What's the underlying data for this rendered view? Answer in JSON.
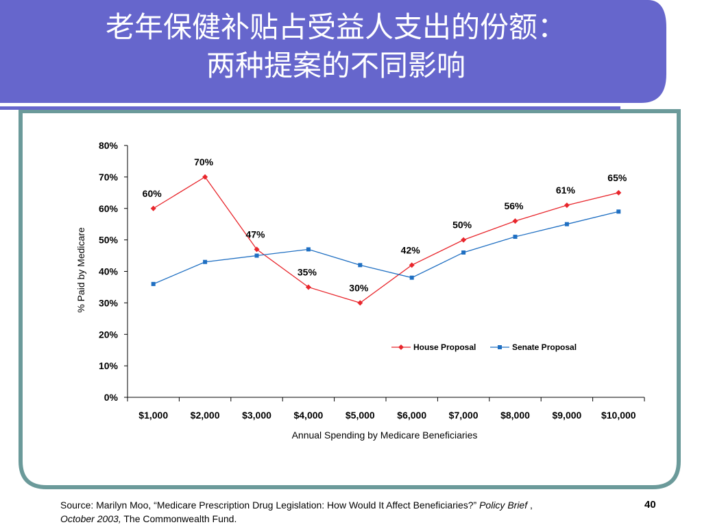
{
  "slide": {
    "title_line1": "老年保健补贴占受益人支出的份额：",
    "title_line2": "两种提案的不同影响",
    "page_number": "40",
    "source": {
      "prefix": "Source: Marilyn Moo, “Medicare Prescription Drug Legislation: How Would It Affect Beneficiaries?” ",
      "italic1": "Policy Brief",
      "sep": " ,",
      "italic2": "October 2003,",
      "suffix": " The Commonwealth Fund."
    },
    "colors": {
      "header": "#6666cc",
      "border": "#6b9a9a",
      "house": "#e8262c",
      "senate": "#1f6fc2"
    }
  },
  "chart_data": {
    "type": "line",
    "categories": [
      "$1,000",
      "$2,000",
      "$3,000",
      "$4,000",
      "$5,000",
      "$6,000",
      "$7,000",
      "$8,000",
      "$9,000",
      "$10,000"
    ],
    "series": [
      {
        "name": "House Proposal",
        "marker": "diamond",
        "values": [
          60,
          70,
          47,
          35,
          30,
          42,
          50,
          56,
          61,
          65
        ],
        "labels": [
          "60%",
          "70%",
          "47%",
          "35%",
          "30%",
          "42%",
          "50%",
          "56%",
          "61%",
          "65%"
        ]
      },
      {
        "name": "Senate Proposal",
        "marker": "square",
        "values": [
          36,
          43,
          45,
          47,
          42,
          38,
          46,
          51,
          55,
          59
        ]
      }
    ],
    "xlabel": "Annual Spending by Medicare Beneficiaries",
    "ylabel": "% Paid by Medicare",
    "ylim": [
      0,
      80
    ],
    "yticks": [
      "0%",
      "10%",
      "20%",
      "30%",
      "40%",
      "50%",
      "60%",
      "70%",
      "80%"
    ],
    "grid": false,
    "legend": "inside-lower-right"
  }
}
